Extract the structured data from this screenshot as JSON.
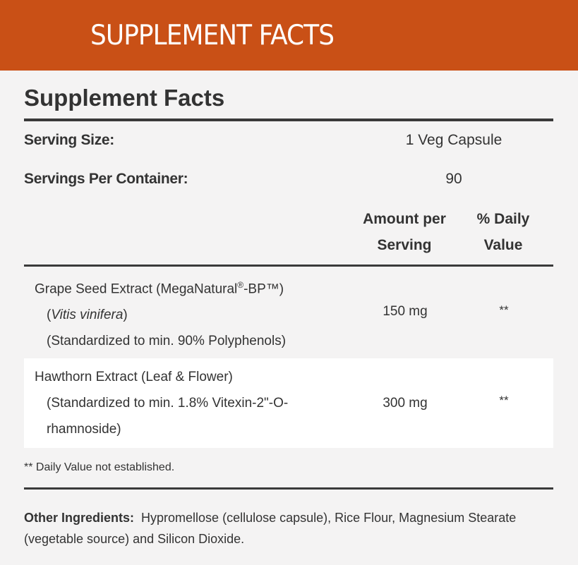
{
  "banner": {
    "title": "SUPPLEMENT FACTS",
    "color": "#c95016"
  },
  "panel": {
    "title": "Supplement Facts",
    "serving_size_label": "Serving Size:",
    "serving_size_value": "1 Veg Capsule",
    "servings_label": "Servings Per Container:",
    "servings_value": "90",
    "col_amount": [
      "Amount per",
      "Serving"
    ],
    "col_dv": [
      "% Daily",
      "Value"
    ]
  },
  "ingredients": [
    {
      "name": "Grape Seed Extract (MegaNatural",
      "sup": "®",
      "name_tail": "-BP™)",
      "latin": "Vitis vinifera",
      "detail": "(Standardized to min. 90% Polyphenols)",
      "amount": "150 mg",
      "dv": "**"
    },
    {
      "name": "Hawthorn Extract (Leaf & Flower)",
      "detail1": "(Standardized to min. 1.8% Vitexin-2\"-O-",
      "detail2": "rhamnoside)",
      "amount": "300 mg",
      "dv": "**"
    }
  ],
  "footnote": "** Daily Value not established.",
  "other": {
    "label": "Other Ingredients:",
    "text": "Hypromellose (cellulose capsule), Rice Flour, Magnesium Stearate (vegetable source) and Silicon Dioxide."
  }
}
